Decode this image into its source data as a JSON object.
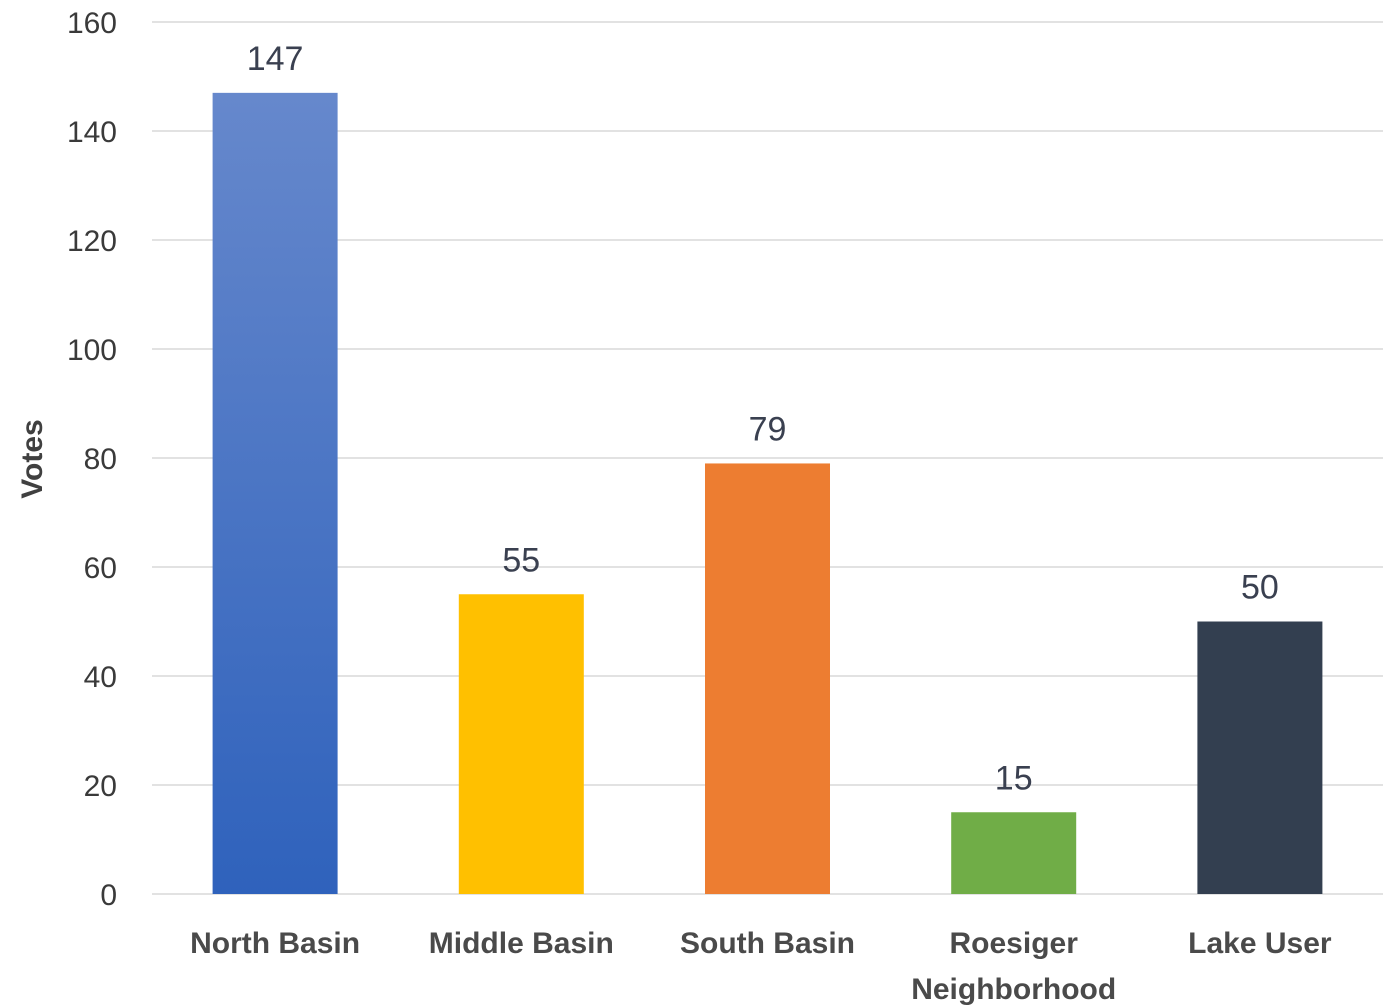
{
  "chart_data": {
    "type": "bar",
    "categories": [
      "North Basin",
      "Middle Basin",
      "South Basin",
      "Roesiger Neighborhood",
      "Lake User"
    ],
    "category_lines": [
      [
        "North Basin"
      ],
      [
        "Middle Basin"
      ],
      [
        "South Basin"
      ],
      [
        "Roesiger",
        "Neighborhood"
      ],
      [
        "Lake User"
      ]
    ],
    "values": [
      147,
      55,
      79,
      15,
      50
    ],
    "data_labels": [
      "147",
      "55",
      "79",
      "15",
      "50"
    ],
    "colors": [
      "#4472C4",
      "#FFC000",
      "#ED7D31",
      "#70AD47",
      "#333F50"
    ],
    "title": "",
    "xlabel": "",
    "ylabel": "Votes",
    "ylim": [
      0,
      160
    ],
    "yticks": [
      0,
      20,
      40,
      60,
      80,
      100,
      120,
      140,
      160
    ],
    "grid": true,
    "legend": "none"
  }
}
